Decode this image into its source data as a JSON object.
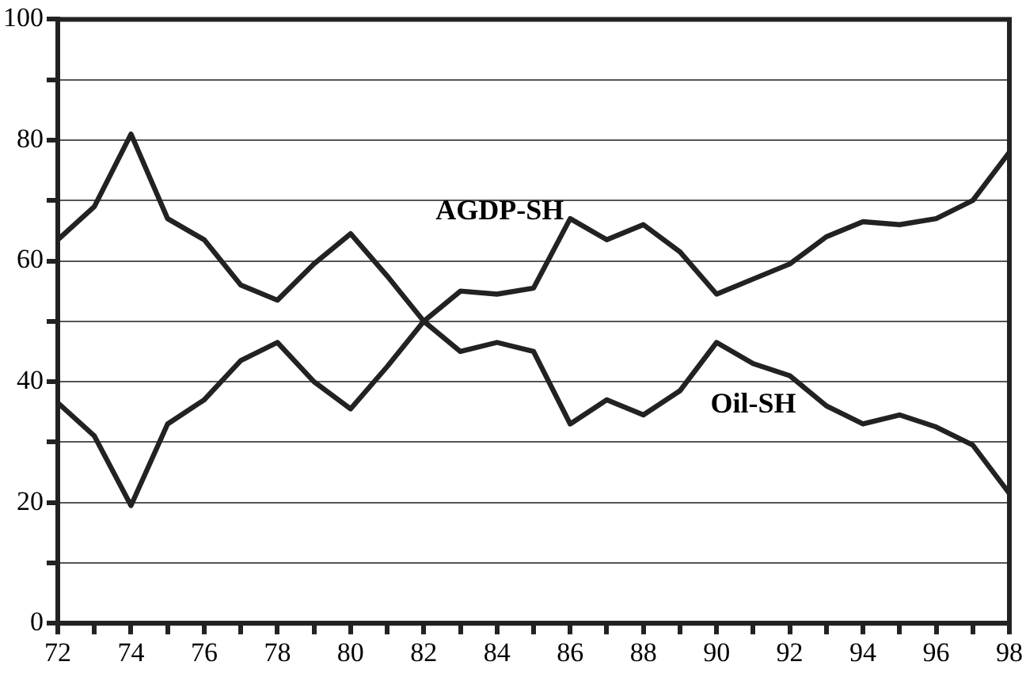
{
  "chart_data": {
    "type": "line",
    "x": [
      72,
      73,
      74,
      75,
      76,
      77,
      78,
      79,
      80,
      81,
      82,
      83,
      84,
      85,
      86,
      87,
      88,
      89,
      90,
      91,
      92,
      93,
      94,
      95,
      96,
      97,
      98
    ],
    "series": [
      {
        "name": "AGDP-SH",
        "color": "#222222",
        "values": [
          63.5,
          69,
          81,
          67,
          63.5,
          56,
          53.5,
          59.5,
          64.5,
          57.5,
          50,
          55,
          54.5,
          55.5,
          67,
          63.5,
          66,
          61.5,
          54.5,
          57,
          59.5,
          64,
          66.5,
          66,
          67,
          70,
          78
        ]
      },
      {
        "name": "Oil-SH",
        "color": "#222222",
        "values": [
          36.5,
          31,
          19.5,
          33,
          37,
          43.5,
          46.5,
          40,
          35.5,
          42.5,
          50,
          45,
          46.5,
          45,
          33,
          37,
          34.5,
          38.5,
          46.5,
          43,
          41,
          36,
          33,
          34.5,
          32.5,
          29.5,
          21.5
        ]
      }
    ],
    "xlim": [
      72,
      98
    ],
    "xticks": [
      72,
      {
        "value": 73,
        "label": null
      },
      74,
      {
        "value": 75,
        "label": null
      },
      76,
      {
        "value": 77,
        "label": null
      },
      78,
      {
        "value": 79,
        "label": null
      },
      80,
      {
        "value": 81,
        "label": null
      },
      82,
      {
        "value": 83,
        "label": null
      },
      84,
      {
        "value": 85,
        "label": null
      },
      86,
      {
        "value": 87,
        "label": null
      },
      88,
      {
        "value": 89,
        "label": null
      },
      90,
      {
        "value": 91,
        "label": null
      },
      92,
      {
        "value": 93,
        "label": null
      },
      94,
      {
        "value": 95,
        "label": null
      },
      96,
      {
        "value": 97,
        "label": null
      },
      98
    ],
    "ylim": [
      0,
      100
    ],
    "yticks": [
      0,
      {
        "value": 10,
        "label": null
      },
      20,
      {
        "value": 30,
        "label": null
      },
      40,
      {
        "value": 50,
        "label": null
      },
      60,
      {
        "value": 70,
        "label": null
      },
      80,
      {
        "value": 90,
        "label": null
      },
      100
    ],
    "grid": "y",
    "legend": false,
    "marker": "none",
    "line_style": "solid"
  }
}
